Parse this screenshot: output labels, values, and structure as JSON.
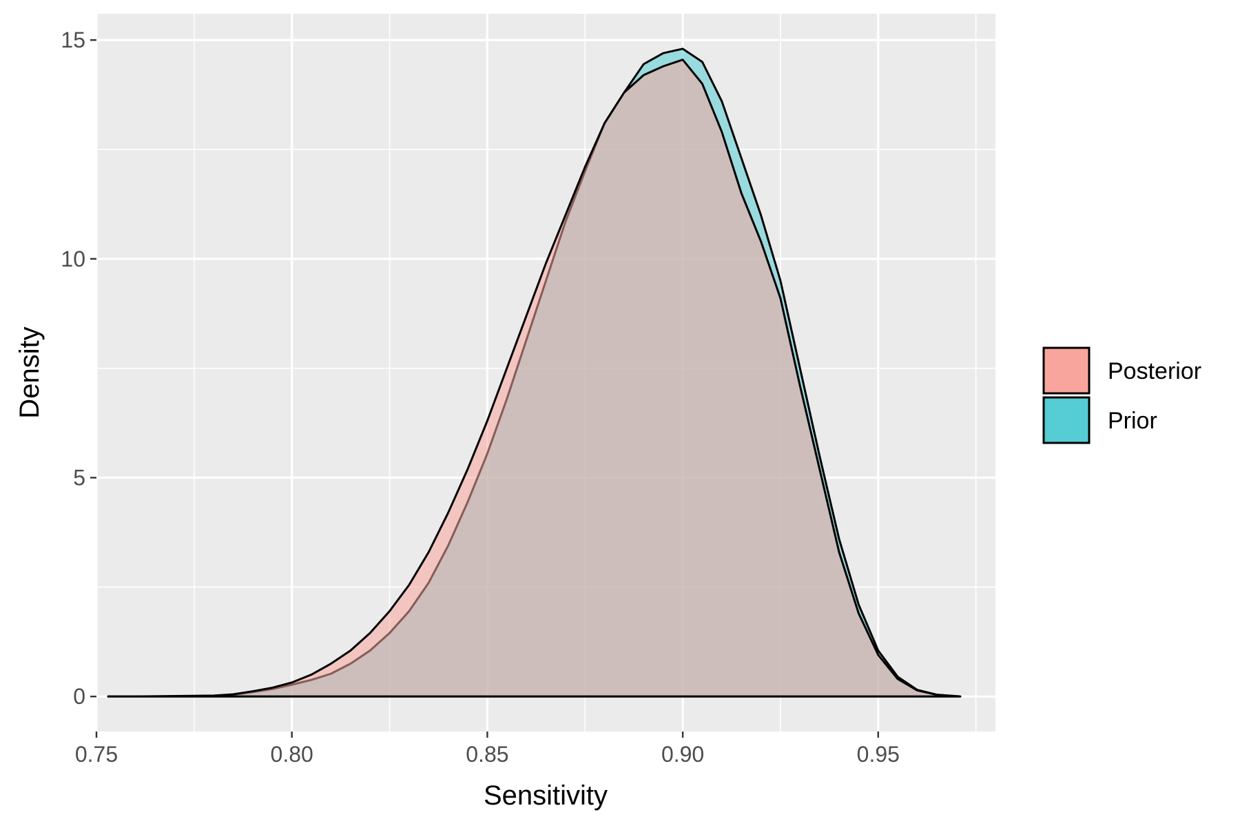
{
  "chart_data": {
    "type": "area",
    "xlabel": "Sensitivity",
    "ylabel": "Density",
    "xlim": [
      0.75,
      0.98
    ],
    "ylim": [
      -0.8,
      15.6
    ],
    "x_ticks": [
      0.75,
      0.8,
      0.85,
      0.9,
      0.95
    ],
    "x_tick_labels": [
      "0.75",
      "0.80",
      "0.85",
      "0.90",
      "0.95"
    ],
    "y_ticks": [
      0,
      5,
      10,
      15
    ],
    "y_tick_labels": [
      "0",
      "5",
      "10",
      "15"
    ],
    "grid": true,
    "legend_position": "right",
    "colors": {
      "panel": "#ebebeb",
      "grid": "#ffffff",
      "outline": "#000000",
      "Posterior": "#f8a59e",
      "Prior": "#56ccd4"
    },
    "fill_opacity": 0.55,
    "legend": [
      {
        "name": "Posterior",
        "color": "#f8a59e"
      },
      {
        "name": "Prior",
        "color": "#56ccd4"
      }
    ],
    "series": [
      {
        "name": "Posterior",
        "color": "#f8a59e",
        "x": [
          0.753,
          0.76,
          0.77,
          0.78,
          0.785,
          0.79,
          0.795,
          0.8,
          0.805,
          0.81,
          0.815,
          0.82,
          0.825,
          0.83,
          0.835,
          0.84,
          0.845,
          0.85,
          0.855,
          0.86,
          0.865,
          0.87,
          0.875,
          0.88,
          0.885,
          0.89,
          0.895,
          0.9,
          0.905,
          0.91,
          0.915,
          0.92,
          0.925,
          0.93,
          0.935,
          0.94,
          0.945,
          0.95,
          0.955,
          0.96,
          0.965,
          0.971
        ],
        "values": [
          0.0,
          0.0,
          0.01,
          0.02,
          0.05,
          0.12,
          0.2,
          0.32,
          0.5,
          0.75,
          1.05,
          1.45,
          1.95,
          2.55,
          3.3,
          4.2,
          5.2,
          6.3,
          7.5,
          8.7,
          9.9,
          11.0,
          12.1,
          13.1,
          13.8,
          14.2,
          14.4,
          14.55,
          14.0,
          12.9,
          11.5,
          10.4,
          9.1,
          7.1,
          5.2,
          3.3,
          1.9,
          0.95,
          0.4,
          0.14,
          0.04,
          0.0
        ]
      },
      {
        "name": "Prior",
        "color": "#56ccd4",
        "x": [
          0.753,
          0.76,
          0.77,
          0.78,
          0.785,
          0.79,
          0.795,
          0.8,
          0.805,
          0.81,
          0.815,
          0.82,
          0.825,
          0.83,
          0.835,
          0.84,
          0.845,
          0.85,
          0.855,
          0.86,
          0.865,
          0.87,
          0.875,
          0.88,
          0.885,
          0.89,
          0.895,
          0.9,
          0.905,
          0.91,
          0.915,
          0.92,
          0.925,
          0.93,
          0.935,
          0.94,
          0.945,
          0.95,
          0.955,
          0.96,
          0.965,
          0.971
        ],
        "values": [
          0.0,
          0.0,
          0.0,
          0.01,
          0.04,
          0.1,
          0.17,
          0.27,
          0.38,
          0.52,
          0.75,
          1.05,
          1.45,
          1.95,
          2.6,
          3.45,
          4.45,
          5.55,
          6.8,
          8.15,
          9.5,
          10.85,
          12.0,
          13.1,
          13.8,
          14.45,
          14.7,
          14.8,
          14.5,
          13.6,
          12.3,
          11.0,
          9.5,
          7.5,
          5.5,
          3.6,
          2.1,
          1.05,
          0.45,
          0.15,
          0.04,
          0.0
        ]
      }
    ]
  }
}
